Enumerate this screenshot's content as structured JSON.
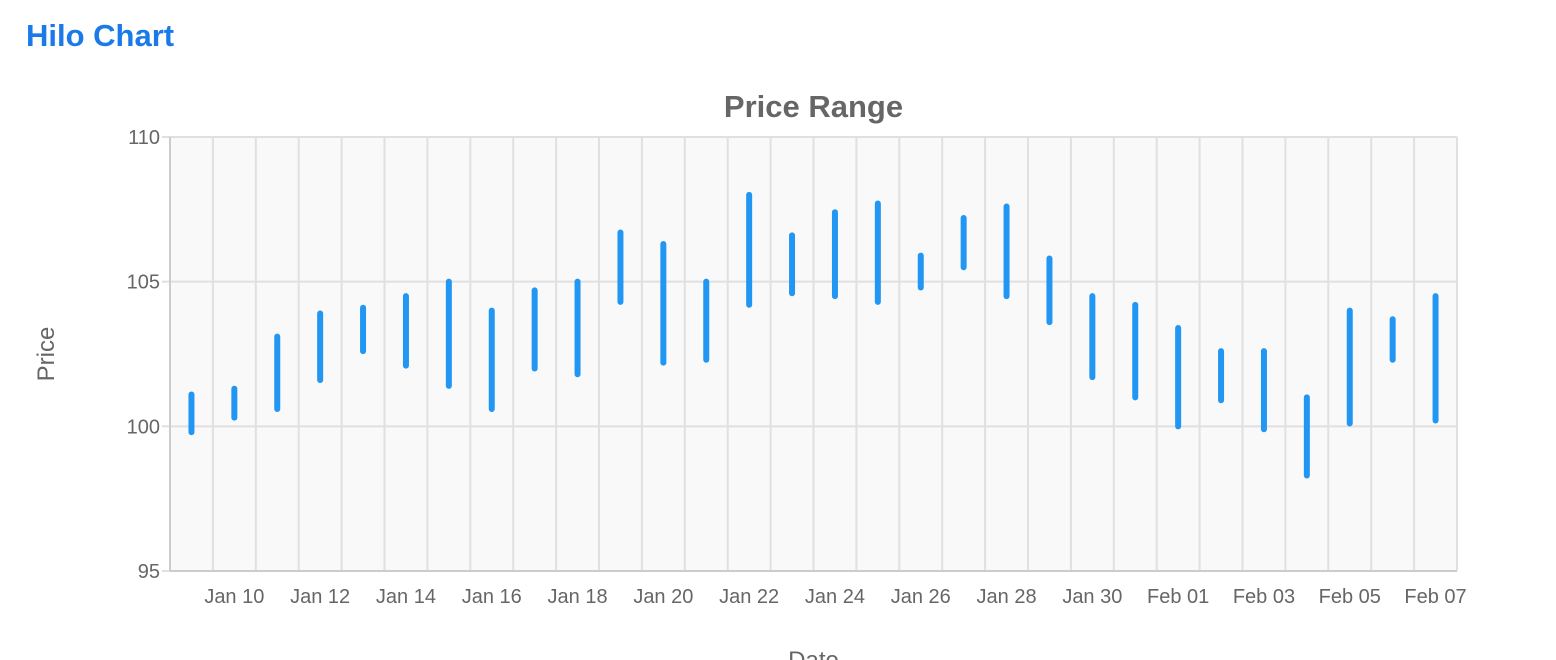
{
  "page": {
    "title": "Hilo Chart"
  },
  "colors": {
    "title": "#1a7ae8",
    "bar": "#2196f3",
    "plot_background": "#f9f9f9",
    "grid": "#e0e0e0",
    "text": "#666666"
  },
  "chart_data": {
    "type": "hilo",
    "title": "Price Range",
    "xlabel": "Date",
    "ylabel": "Price",
    "ylim": [
      95,
      110
    ],
    "yticks": [
      95,
      100,
      105,
      110
    ],
    "xlim": [
      "2024-01-09",
      "2024-02-08"
    ],
    "xtick_dates": [
      "2024-01-10",
      "2024-01-12",
      "2024-01-14",
      "2024-01-16",
      "2024-01-18",
      "2024-01-20",
      "2024-01-22",
      "2024-01-24",
      "2024-01-26",
      "2024-01-28",
      "2024-01-30",
      "2024-02-01",
      "2024-02-03",
      "2024-02-05",
      "2024-02-07"
    ],
    "xtick_labels": [
      "Jan 10",
      "Jan 12",
      "Jan 14",
      "Jan 16",
      "Jan 18",
      "Jan 20",
      "Jan 22",
      "Jan 24",
      "Jan 26",
      "Jan 28",
      "Jan 30",
      "Feb 01",
      "Feb 03",
      "Feb 05",
      "Feb 07"
    ],
    "grid": true,
    "legend": false,
    "series": [
      {
        "points": [
          {
            "date": "2024-01-09",
            "low": 99.8,
            "high": 101.1
          },
          {
            "date": "2024-01-10",
            "low": 100.3,
            "high": 101.3
          },
          {
            "date": "2024-01-11",
            "low": 100.6,
            "high": 103.1
          },
          {
            "date": "2024-01-12",
            "low": 101.6,
            "high": 103.9
          },
          {
            "date": "2024-01-13",
            "low": 102.6,
            "high": 104.1
          },
          {
            "date": "2024-01-14",
            "low": 102.1,
            "high": 104.5
          },
          {
            "date": "2024-01-15",
            "low": 101.4,
            "high": 105.0
          },
          {
            "date": "2024-01-16",
            "low": 100.6,
            "high": 104.0
          },
          {
            "date": "2024-01-17",
            "low": 102.0,
            "high": 104.7
          },
          {
            "date": "2024-01-18",
            "low": 101.8,
            "high": 105.0
          },
          {
            "date": "2024-01-19",
            "low": 104.3,
            "high": 106.7
          },
          {
            "date": "2024-01-20",
            "low": 102.2,
            "high": 106.3
          },
          {
            "date": "2024-01-21",
            "low": 102.3,
            "high": 105.0
          },
          {
            "date": "2024-01-22",
            "low": 104.2,
            "high": 108.0
          },
          {
            "date": "2024-01-23",
            "low": 104.6,
            "high": 106.6
          },
          {
            "date": "2024-01-24",
            "low": 104.5,
            "high": 107.4
          },
          {
            "date": "2024-01-25",
            "low": 104.3,
            "high": 107.7
          },
          {
            "date": "2024-01-26",
            "low": 104.8,
            "high": 105.9
          },
          {
            "date": "2024-01-27",
            "low": 105.5,
            "high": 107.2
          },
          {
            "date": "2024-01-28",
            "low": 104.5,
            "high": 107.6
          },
          {
            "date": "2024-01-29",
            "low": 103.6,
            "high": 105.8
          },
          {
            "date": "2024-01-30",
            "low": 101.7,
            "high": 104.5
          },
          {
            "date": "2024-01-31",
            "low": 101.0,
            "high": 104.2
          },
          {
            "date": "2024-02-01",
            "low": 100.0,
            "high": 103.4
          },
          {
            "date": "2024-02-02",
            "low": 100.9,
            "high": 102.6
          },
          {
            "date": "2024-02-03",
            "low": 99.9,
            "high": 102.6
          },
          {
            "date": "2024-02-04",
            "low": 98.3,
            "high": 101.0
          },
          {
            "date": "2024-02-05",
            "low": 100.1,
            "high": 104.0
          },
          {
            "date": "2024-02-06",
            "low": 102.3,
            "high": 103.7
          },
          {
            "date": "2024-02-07",
            "low": 100.2,
            "high": 104.5
          }
        ]
      }
    ]
  }
}
